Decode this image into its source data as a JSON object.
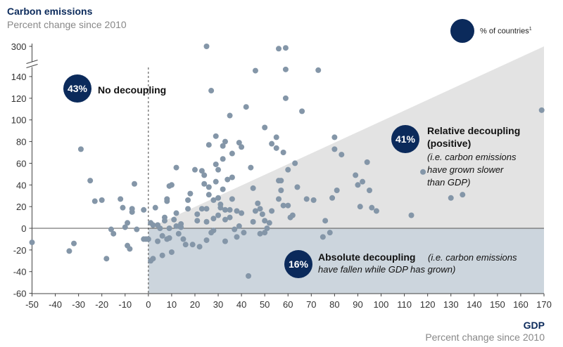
{
  "chart_data": {
    "type": "scatter",
    "title": "Carbon emissions",
    "subtitle": "Percent change since 2010",
    "xlabel": "GDP",
    "xlabel_sub": "Percent change since 2010",
    "xlim": [
      -50,
      170
    ],
    "ylim": [
      -60,
      300
    ],
    "y_axis_break": "between 140 and 300",
    "x_ticks": [
      "-50",
      "-40",
      "-30",
      "-20",
      "-10",
      "0",
      "10",
      "20",
      "30",
      "40",
      "50",
      "60",
      "70",
      "80",
      "90",
      "100",
      "110",
      "120",
      "130",
      "140",
      "150",
      "160",
      "170"
    ],
    "y_ticks": [
      "-60",
      "-40",
      "-20",
      "0",
      "20",
      "40",
      "60",
      "80",
      "100",
      "120",
      "140",
      "300"
    ],
    "legend": {
      "label": "% of countries",
      "footnote": "1"
    },
    "annotations": [
      {
        "pct": "43%",
        "title": "No decoupling",
        "body": ""
      },
      {
        "pct": "41%",
        "title": "Relative decoupling",
        "title2": "(positive)",
        "body_lines": [
          "(i.e. carbon emissions",
          "have grown slower",
          "than GDP)"
        ]
      },
      {
        "pct": "16%",
        "title": "Absolute decoupling",
        "body_inline": "(i.e. carbon emissions",
        "body_lines": [
          "have fallen while GDP has grown)"
        ]
      }
    ],
    "colors": {
      "points": "#8496a8",
      "bubble": "#0b2a5b",
      "relative_region": "#e3e3e3",
      "absolute_region": "#ccd5dd",
      "axis": "#555555"
    },
    "points": [
      [
        -50,
        -13
      ],
      [
        -34,
        -21
      ],
      [
        -32,
        -14
      ],
      [
        -29,
        73
      ],
      [
        -25,
        44
      ],
      [
        -23,
        25
      ],
      [
        -20,
        26
      ],
      [
        -18,
        -28
      ],
      [
        -16,
        -1
      ],
      [
        -15,
        -5
      ],
      [
        -12,
        27
      ],
      [
        -11,
        19
      ],
      [
        -10,
        1
      ],
      [
        -9,
        5
      ],
      [
        -9,
        -16
      ],
      [
        -8,
        -19
      ],
      [
        -7,
        15
      ],
      [
        -7,
        18
      ],
      [
        -6,
        41
      ],
      [
        -5,
        -1
      ],
      [
        -2,
        17
      ],
      [
        -2,
        -10
      ],
      [
        -1,
        -10
      ],
      [
        0,
        -10
      ],
      [
        1,
        5
      ],
      [
        1,
        -30
      ],
      [
        2,
        3
      ],
      [
        2,
        -28
      ],
      [
        3,
        19
      ],
      [
        4,
        3
      ],
      [
        4,
        -12
      ],
      [
        5,
        0
      ],
      [
        6,
        -7
      ],
      [
        6,
        -25
      ],
      [
        7,
        7
      ],
      [
        7,
        10
      ],
      [
        8,
        -10
      ],
      [
        8,
        27
      ],
      [
        8,
        25
      ],
      [
        9,
        0
      ],
      [
        9,
        -9
      ],
      [
        9,
        39
      ],
      [
        10,
        40
      ],
      [
        10,
        -22
      ],
      [
        11,
        8
      ],
      [
        12,
        2
      ],
      [
        12,
        14
      ],
      [
        12,
        56
      ],
      [
        13,
        -5
      ],
      [
        14,
        4
      ],
      [
        14,
        1
      ],
      [
        15,
        -10
      ],
      [
        16,
        -15
      ],
      [
        17,
        26
      ],
      [
        17,
        18
      ],
      [
        18,
        32
      ],
      [
        19,
        -15
      ],
      [
        20,
        54
      ],
      [
        21,
        7
      ],
      [
        21,
        13
      ],
      [
        22,
        -17
      ],
      [
        23,
        18
      ],
      [
        23,
        53
      ],
      [
        24,
        49
      ],
      [
        24,
        41
      ],
      [
        25,
        18
      ],
      [
        25,
        6
      ],
      [
        25,
        -11
      ],
      [
        26,
        77
      ],
      [
        26,
        38
      ],
      [
        26,
        31
      ],
      [
        27,
        127
      ],
      [
        27,
        -4
      ],
      [
        28,
        26
      ],
      [
        28,
        -2
      ],
      [
        28,
        9
      ],
      [
        29,
        85
      ],
      [
        29,
        59
      ],
      [
        29,
        43
      ],
      [
        30,
        54
      ],
      [
        30,
        28
      ],
      [
        30,
        12
      ],
      [
        31,
        19
      ],
      [
        31,
        22
      ],
      [
        32,
        76
      ],
      [
        32,
        64
      ],
      [
        32,
        36
      ],
      [
        33,
        -12
      ],
      [
        33,
        8
      ],
      [
        33,
        17
      ],
      [
        33,
        80
      ],
      [
        34,
        45
      ],
      [
        35,
        10
      ],
      [
        35,
        104
      ],
      [
        35,
        17
      ],
      [
        36,
        69
      ],
      [
        36,
        47
      ],
      [
        36,
        27
      ],
      [
        37,
        -1
      ],
      [
        38,
        16
      ],
      [
        38,
        -8
      ],
      [
        39,
        79
      ],
      [
        39,
        2
      ],
      [
        40,
        75
      ],
      [
        40,
        14
      ],
      [
        41,
        -4
      ],
      [
        42,
        112
      ],
      [
        43,
        -44
      ],
      [
        44,
        56
      ],
      [
        45,
        37
      ],
      [
        45,
        6
      ],
      [
        46,
        142
      ],
      [
        46,
        16
      ],
      [
        47,
        23
      ],
      [
        48,
        -5
      ],
      [
        48,
        18
      ],
      [
        49,
        13
      ],
      [
        50,
        7
      ],
      [
        50,
        93
      ],
      [
        50,
        -4
      ],
      [
        51,
        0
      ],
      [
        52,
        5
      ],
      [
        53,
        78
      ],
      [
        53,
        16
      ],
      [
        55,
        84
      ],
      [
        55,
        74
      ],
      [
        56,
        27
      ],
      [
        56,
        44
      ],
      [
        57,
        44
      ],
      [
        57,
        35
      ],
      [
        58,
        21
      ],
      [
        58,
        70
      ],
      [
        59,
        150
      ],
      [
        59,
        120
      ],
      [
        60,
        21
      ],
      [
        60,
        54
      ],
      [
        61,
        10
      ],
      [
        62,
        12
      ],
      [
        63,
        60
      ],
      [
        64,
        38
      ],
      [
        66,
        108
      ],
      [
        68,
        27
      ],
      [
        71,
        26
      ],
      [
        73,
        145
      ],
      [
        75,
        -8
      ],
      [
        76,
        7
      ],
      [
        78,
        -4
      ],
      [
        79,
        28
      ],
      [
        80,
        84
      ],
      [
        80,
        73
      ],
      [
        81,
        35
      ],
      [
        83,
        68
      ],
      [
        89,
        49
      ],
      [
        90,
        40
      ],
      [
        91,
        20
      ],
      [
        92,
        43
      ],
      [
        94,
        61
      ],
      [
        95,
        35
      ],
      [
        96,
        19
      ],
      [
        98,
        16
      ],
      [
        113,
        12
      ],
      [
        118,
        52
      ],
      [
        130,
        28
      ],
      [
        135,
        31
      ],
      [
        169,
        109
      ]
    ],
    "points_above_break": [
      [
        25,
        300
      ],
      [
        56,
        285
      ],
      [
        59,
        290
      ]
    ]
  }
}
